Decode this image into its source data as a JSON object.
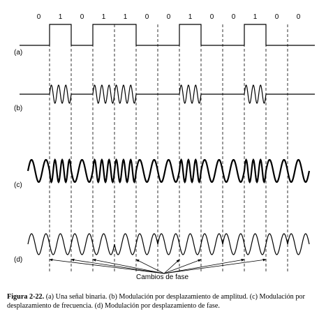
{
  "bits": [
    "0",
    "1",
    "0",
    "1",
    "1",
    "0",
    "0",
    "1",
    "0",
    "0",
    "1",
    "0",
    "0"
  ],
  "rows": [
    {
      "label": "(a)",
      "kind": "binary"
    },
    {
      "label": "(b)",
      "kind": "ask"
    },
    {
      "label": "(c)",
      "kind": "fsk"
    },
    {
      "label": "(d)",
      "kind": "psk"
    }
  ],
  "annotation": "Cambios de fase",
  "caption": {
    "title": "Figura 2-22.",
    "text": "(a) Una señal binaria. (b) Modulación por desplazamiento de amplitud. (c) Modulación por desplazamiento de frecuencia. (d) Modulación por desplazamiento de fase."
  }
}
